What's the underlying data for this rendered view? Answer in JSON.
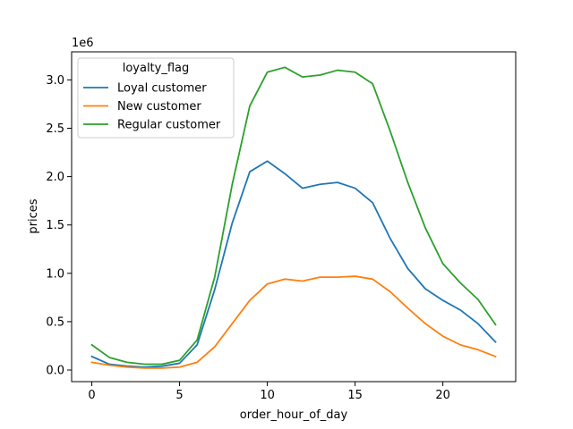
{
  "chart_data": {
    "type": "line",
    "xlabel": "order_hour_of_day",
    "ylabel": "prices",
    "y_offset_label": "1e6",
    "xlim": [
      -1.15,
      24.15
    ],
    "ylim": [
      -120000,
      3290000
    ],
    "x_ticks": [
      0,
      5,
      10,
      15,
      20
    ],
    "y_ticks": [
      0,
      500000,
      1000000,
      1500000,
      2000000,
      2500000,
      3000000
    ],
    "y_tick_labels": [
      "0.0",
      "0.5",
      "1.0",
      "1.5",
      "2.0",
      "2.5",
      "3.0"
    ],
    "grid": false,
    "legend": {
      "title": "loyalty_flag",
      "placement": "upper-left"
    },
    "x": [
      0,
      1,
      2,
      3,
      4,
      5,
      6,
      7,
      8,
      9,
      10,
      11,
      12,
      13,
      14,
      15,
      16,
      17,
      18,
      19,
      20,
      21,
      22,
      23
    ],
    "series": [
      {
        "name": "Loyal customer",
        "color": "#1f77b4",
        "values": [
          140000,
          60000,
          40000,
          30000,
          40000,
          70000,
          260000,
          830000,
          1520000,
          2050000,
          2160000,
          2030000,
          1880000,
          1920000,
          1940000,
          1880000,
          1730000,
          1360000,
          1050000,
          840000,
          720000,
          620000,
          480000,
          290000
        ]
      },
      {
        "name": "New customer",
        "color": "#ff7f0e",
        "values": [
          80000,
          50000,
          30000,
          20000,
          20000,
          30000,
          80000,
          240000,
          480000,
          720000,
          890000,
          940000,
          920000,
          960000,
          960000,
          970000,
          940000,
          810000,
          640000,
          480000,
          350000,
          260000,
          210000,
          140000
        ]
      },
      {
        "name": "Regular customer",
        "color": "#2ca02c",
        "values": [
          260000,
          130000,
          80000,
          60000,
          60000,
          100000,
          310000,
          960000,
          1920000,
          2730000,
          3080000,
          3130000,
          3030000,
          3050000,
          3100000,
          3080000,
          2960000,
          2470000,
          1940000,
          1470000,
          1100000,
          900000,
          730000,
          470000
        ]
      }
    ]
  }
}
